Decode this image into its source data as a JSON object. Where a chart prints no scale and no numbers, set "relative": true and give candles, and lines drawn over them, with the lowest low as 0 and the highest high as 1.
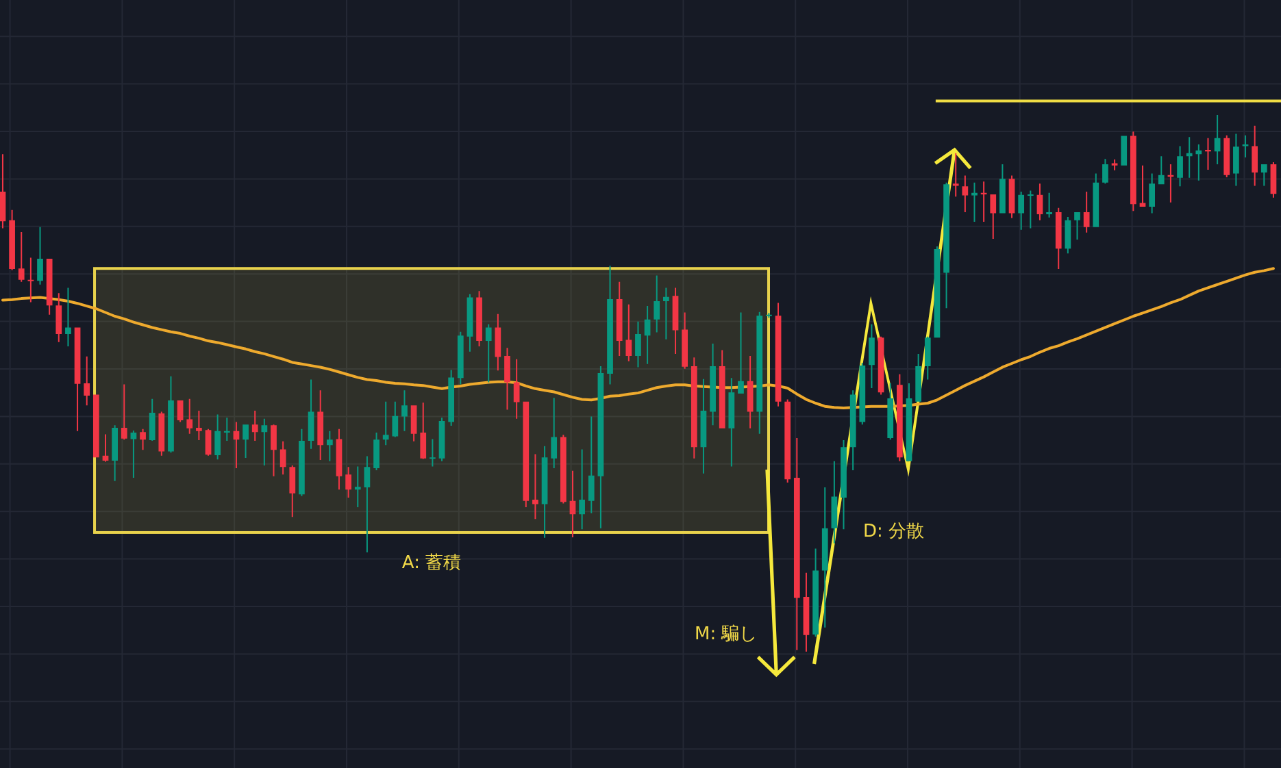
{
  "chart_data": {
    "type": "candlestick",
    "relative": true,
    "grid": true,
    "categories": [
      null,
      null,
      null,
      null,
      null,
      null,
      null,
      null,
      null,
      null,
      null,
      null,
      null,
      null,
      null,
      null,
      null,
      null,
      null,
      null,
      null,
      null,
      null,
      null,
      null,
      null,
      null,
      null,
      null,
      null,
      null,
      null,
      null,
      null,
      null,
      null,
      null,
      null,
      null,
      null,
      null,
      null,
      null,
      null,
      null,
      null,
      null,
      null,
      null,
      null,
      null,
      null,
      null,
      null,
      null,
      null,
      null,
      null,
      null,
      null,
      null,
      null,
      null,
      null,
      null,
      null,
      null,
      null,
      null,
      null,
      null,
      null,
      null,
      null,
      null,
      null,
      null,
      null,
      null,
      null,
      null,
      null,
      null,
      null,
      null,
      null,
      null,
      null,
      null,
      null,
      null,
      null,
      null,
      null,
      null,
      null,
      null,
      null,
      null,
      null,
      null,
      null,
      null,
      null,
      null,
      null,
      null,
      null,
      null,
      null,
      null,
      null,
      null,
      null,
      null,
      null,
      null,
      null,
      null,
      null,
      null,
      null,
      null,
      null,
      null,
      null,
      null,
      null,
      null,
      null,
      null,
      null,
      null,
      null,
      null,
      null,
      null
    ],
    "ohlc": [
      [
        0.857,
        0.927,
        0.789,
        0.802
      ],
      [
        0.804,
        0.823,
        0.711,
        0.713
      ],
      [
        0.714,
        0.782,
        0.689,
        0.693
      ],
      [
        0.693,
        0.734,
        0.651,
        0.691
      ],
      [
        0.691,
        0.791,
        0.684,
        0.732
      ],
      [
        0.732,
        0.732,
        0.628,
        0.645
      ],
      [
        0.645,
        0.668,
        0.577,
        0.592
      ],
      [
        0.592,
        0.678,
        0.569,
        0.604
      ],
      [
        0.604,
        0.604,
        0.411,
        0.499
      ],
      [
        0.5,
        0.55,
        0.459,
        0.477
      ],
      [
        0.479,
        0.479,
        0.362,
        0.362
      ],
      [
        0.365,
        0.405,
        0.354,
        0.356
      ],
      [
        0.356,
        0.422,
        0.318,
        0.417
      ],
      [
        0.417,
        0.498,
        0.395,
        0.397
      ],
      [
        0.396,
        0.412,
        0.324,
        0.408
      ],
      [
        0.409,
        0.415,
        0.376,
        0.395
      ],
      [
        0.394,
        0.471,
        0.393,
        0.445
      ],
      [
        0.444,
        0.447,
        0.365,
        0.373
      ],
      [
        0.373,
        0.513,
        0.371,
        0.468
      ],
      [
        0.468,
        0.468,
        0.428,
        0.431
      ],
      [
        0.433,
        0.471,
        0.406,
        0.416
      ],
      [
        0.417,
        0.449,
        0.394,
        0.411
      ],
      [
        0.413,
        0.415,
        0.365,
        0.367
      ],
      [
        0.366,
        0.442,
        0.358,
        0.411
      ],
      [
        0.408,
        0.436,
        0.393,
        0.411
      ],
      [
        0.411,
        0.428,
        0.342,
        0.395
      ],
      [
        0.395,
        0.423,
        0.361,
        0.423
      ],
      [
        0.423,
        0.449,
        0.393,
        0.409
      ],
      [
        0.409,
        0.434,
        0.347,
        0.422
      ],
      [
        0.422,
        0.423,
        0.327,
        0.376
      ],
      [
        0.377,
        0.392,
        0.33,
        0.344
      ],
      [
        0.344,
        0.347,
        0.251,
        0.295
      ],
      [
        0.293,
        0.415,
        0.29,
        0.393
      ],
      [
        0.393,
        0.507,
        0.378,
        0.447
      ],
      [
        0.447,
        0.487,
        0.357,
        0.385
      ],
      [
        0.385,
        0.411,
        0.355,
        0.395
      ],
      [
        0.396,
        0.415,
        0.302,
        0.327
      ],
      [
        0.33,
        0.344,
        0.287,
        0.302
      ],
      [
        0.302,
        0.345,
        0.269,
        0.307
      ],
      [
        0.306,
        0.364,
        0.185,
        0.344
      ],
      [
        0.342,
        0.408,
        0.338,
        0.395
      ],
      [
        0.395,
        0.466,
        0.385,
        0.404
      ],
      [
        0.401,
        0.466,
        0.4,
        0.439
      ],
      [
        0.438,
        0.487,
        0.411,
        0.459
      ],
      [
        0.459,
        0.459,
        0.392,
        0.406
      ],
      [
        0.408,
        0.464,
        0.359,
        0.36
      ],
      [
        0.36,
        0.396,
        0.345,
        0.362
      ],
      [
        0.36,
        0.436,
        0.355,
        0.43
      ],
      [
        0.428,
        0.525,
        0.421,
        0.511
      ],
      [
        0.51,
        0.596,
        0.498,
        0.589
      ],
      [
        0.587,
        0.666,
        0.559,
        0.66
      ],
      [
        0.66,
        0.672,
        0.569,
        0.579
      ],
      [
        0.579,
        0.61,
        0.502,
        0.604
      ],
      [
        0.604,
        0.629,
        0.524,
        0.549
      ],
      [
        0.551,
        0.566,
        0.451,
        0.502
      ],
      [
        0.502,
        0.545,
        0.434,
        0.465
      ],
      [
        0.466,
        0.466,
        0.269,
        0.281
      ],
      [
        0.283,
        0.368,
        0.247,
        0.275
      ],
      [
        0.275,
        0.383,
        0.212,
        0.362
      ],
      [
        0.36,
        0.473,
        0.342,
        0.4
      ],
      [
        0.4,
        0.404,
        0.276,
        0.279
      ],
      [
        0.281,
        0.337,
        0.213,
        0.256
      ],
      [
        0.256,
        0.377,
        0.228,
        0.283
      ],
      [
        0.281,
        0.438,
        0.258,
        0.328
      ],
      [
        0.327,
        0.532,
        0.23,
        0.519
      ],
      [
        0.518,
        0.719,
        0.498,
        0.657
      ],
      [
        0.657,
        0.689,
        0.551,
        0.579
      ],
      [
        0.581,
        0.647,
        0.541,
        0.551
      ],
      [
        0.551,
        0.615,
        0.53,
        0.592
      ],
      [
        0.589,
        0.644,
        0.536,
        0.619
      ],
      [
        0.619,
        0.701,
        0.595,
        0.653
      ],
      [
        0.653,
        0.678,
        0.582,
        0.661
      ],
      [
        0.663,
        0.678,
        0.555,
        0.599
      ],
      [
        0.6,
        0.632,
        0.527,
        0.531
      ],
      [
        0.532,
        0.548,
        0.36,
        0.381
      ],
      [
        0.381,
        0.508,
        0.332,
        0.449
      ],
      [
        0.447,
        0.574,
        0.422,
        0.532
      ],
      [
        0.532,
        0.562,
        0.416,
        0.416
      ],
      [
        0.416,
        0.51,
        0.345,
        0.483
      ],
      [
        0.481,
        0.632,
        0.481,
        0.504
      ],
      [
        0.504,
        0.551,
        0.416,
        0.447
      ],
      [
        0.447,
        0.633,
        0.406,
        0.626
      ],
      [
        0.626,
        0.631,
        0.622,
        0.628
      ],
      [
        0.626,
        0.65,
        0.457,
        0.466
      ],
      [
        0.466,
        0.47,
        0.315,
        0.321
      ],
      [
        0.324,
        0.398,
        0.003,
        0.1
      ],
      [
        0.102,
        0.147,
        0,
        0.031
      ],
      [
        0.032,
        0.192,
        0.028,
        0.151
      ],
      [
        0.151,
        0.306,
        0.045,
        0.23
      ],
      [
        0.23,
        0.355,
        0.202,
        0.289
      ],
      [
        0.287,
        0.394,
        0.228,
        0.381
      ],
      [
        0.381,
        0.487,
        0.338,
        0.479
      ],
      [
        0.428,
        0.538,
        0.423,
        0.533
      ],
      [
        0.534,
        0.61,
        0.491,
        0.585
      ],
      [
        0.585,
        0.587,
        0.479,
        0.483
      ],
      [
        0.398,
        0.5,
        0.395,
        0.472
      ],
      [
        0.497,
        0.517,
        0.355,
        0.362
      ],
      [
        0.355,
        0.5,
        0.355,
        0.472
      ],
      [
        0.466,
        0.555,
        0.466,
        0.532
      ],
      [
        0.532,
        0.587,
        0.507,
        0.585
      ],
      [
        0.585,
        0.755,
        0.585,
        0.75
      ],
      [
        0.706,
        0.874,
        0.64,
        0.871
      ],
      [
        0.872,
        0.929,
        0.848,
        0.868
      ],
      [
        0.867,
        0.887,
        0.819,
        0.85
      ],
      [
        0.85,
        0.874,
        0.801,
        0.855
      ],
      [
        0.855,
        0.876,
        0.801,
        0.852
      ],
      [
        0.852,
        0.852,
        0.769,
        0.817
      ],
      [
        0.817,
        0.908,
        0.817,
        0.881
      ],
      [
        0.881,
        0.887,
        0.808,
        0.817
      ],
      [
        0.817,
        0.857,
        0.786,
        0.851
      ],
      [
        0.85,
        0.859,
        0.789,
        0.852
      ],
      [
        0.851,
        0.872,
        0.804,
        0.815
      ],
      [
        0.815,
        0.855,
        0.809,
        0.819
      ],
      [
        0.819,
        0.827,
        0.713,
        0.751
      ],
      [
        0.751,
        0.81,
        0.742,
        0.804
      ],
      [
        0.804,
        0.819,
        0.768,
        0.819
      ],
      [
        0.819,
        0.857,
        0.781,
        0.791
      ],
      [
        0.791,
        0.891,
        0.791,
        0.874
      ],
      [
        0.874,
        0.918,
        0.872,
        0.908
      ],
      [
        0.91,
        0.917,
        0.897,
        0.906
      ],
      [
        0.906,
        0.961,
        0.906,
        0.961
      ],
      [
        0.961,
        0.969,
        0.821,
        0.834
      ],
      [
        0.836,
        0.906,
        0.829,
        0.829
      ],
      [
        0.829,
        0.891,
        0.817,
        0.872
      ],
      [
        0.871,
        0.923,
        0.871,
        0.888
      ],
      [
        0.888,
        0.908,
        0.837,
        0.885
      ],
      [
        0.883,
        0.942,
        0.867,
        0.923
      ],
      [
        0.923,
        0.959,
        0.883,
        0.929
      ],
      [
        0.927,
        0.945,
        0.878,
        0.934
      ],
      [
        0.935,
        0.957,
        0.898,
        0.932
      ],
      [
        0.932,
        1,
        0.908,
        0.957
      ],
      [
        0.957,
        0.962,
        0.884,
        0.888
      ],
      [
        0.891,
        0.965,
        0.868,
        0.941
      ],
      [
        0.942,
        0.962,
        0.921,
        0.945
      ],
      [
        0.942,
        0.98,
        0.868,
        0.893
      ],
      [
        0.893,
        0.908,
        0.868,
        0.908
      ],
      [
        0.908,
        0.912,
        0.846,
        0.853
      ]
    ],
    "colors": [
      "#f23645",
      "#f23645",
      "#f23645",
      "#f23645",
      "#089981",
      "#f23645",
      "#f23645",
      "#089981",
      "#f23645",
      "#f23645",
      "#f23645",
      "#f23645",
      "#089981",
      "#f23645",
      "#089981",
      "#f23645",
      "#089981",
      "#f23645",
      "#089981",
      "#f23645",
      "#f23645",
      "#f23645",
      "#f23645",
      "#089981",
      "#089981",
      "#f23645",
      "#089981",
      "#f23645",
      "#089981",
      "#f23645",
      "#f23645",
      "#f23645",
      "#089981",
      "#089981",
      "#f23645",
      "#089981",
      "#f23645",
      "#f23645",
      "#089981",
      "#089981",
      "#089981",
      "#089981",
      "#089981",
      "#089981",
      "#f23645",
      "#f23645",
      "#089981",
      "#089981",
      "#089981",
      "#089981",
      "#089981",
      "#f23645",
      "#089981",
      "#f23645",
      "#f23645",
      "#f23645",
      "#f23645",
      "#f23645",
      "#089981",
      "#089981",
      "#f23645",
      "#f23645",
      "#089981",
      "#089981",
      "#089981",
      "#089981",
      "#f23645",
      "#f23645",
      "#089981",
      "#089981",
      "#089981",
      "#089981",
      "#f23645",
      "#f23645",
      "#f23645",
      "#089981",
      "#089981",
      "#f23645",
      "#089981",
      "#089981",
      "#f23645",
      "#089981",
      "#089981",
      "#f23645",
      "#f23645",
      "#f23645",
      "#f23645",
      "#089981",
      "#089981",
      "#089981",
      "#089981",
      "#089981",
      "#089981",
      "#089981",
      "#f23645",
      "#089981",
      "#f23645",
      "#089981",
      "#089981",
      "#089981",
      "#089981",
      "#089981",
      "#f23645",
      "#f23645",
      "#089981",
      "#f23645",
      "#f23645",
      "#089981",
      "#f23645",
      "#089981",
      "#089981",
      "#f23645",
      "#089981",
      "#f23645",
      "#089981",
      "#089981",
      "#f23645",
      "#089981",
      "#089981",
      "#f23645",
      "#089981",
      "#f23645",
      "#f23645",
      "#089981",
      "#089981",
      "#f23645",
      "#089981",
      "#089981",
      "#089981",
      "#f23645",
      "#089981",
      "#f23645",
      "#089981",
      "#089981",
      "#f23645",
      "#089981",
      "#f23645"
    ],
    "series": [
      {
        "type": "line",
        "color": "#eeaa2e",
        "values": [
          0.655,
          0.656,
          0.658,
          0.659,
          0.66,
          0.658,
          0.656,
          0.653,
          0.649,
          0.644,
          0.639,
          0.632,
          0.625,
          0.62,
          0.614,
          0.609,
          0.604,
          0.6,
          0.596,
          0.593,
          0.588,
          0.584,
          0.579,
          0.576,
          0.572,
          0.568,
          0.564,
          0.559,
          0.555,
          0.55,
          0.545,
          0.539,
          0.536,
          0.533,
          0.53,
          0.526,
          0.521,
          0.516,
          0.511,
          0.507,
          0.505,
          0.502,
          0.5,
          0.499,
          0.497,
          0.496,
          0.493,
          0.49,
          0.493,
          0.495,
          0.498,
          0.5,
          0.502,
          0.503,
          0.503,
          0.501,
          0.495,
          0.49,
          0.487,
          0.484,
          0.479,
          0.474,
          0.47,
          0.469,
          0.472,
          0.476,
          0.477,
          0.48,
          0.482,
          0.487,
          0.492,
          0.495,
          0.497,
          0.497,
          0.495,
          0.494,
          0.493,
          0.492,
          0.492,
          0.493,
          0.494,
          0.495,
          0.497,
          0.495,
          0.491,
          0.48,
          0.47,
          0.463,
          0.457,
          0.455,
          0.454,
          0.455,
          0.456,
          0.457,
          0.457,
          0.457,
          0.458,
          0.459,
          0.461,
          0.463,
          0.469,
          0.478,
          0.487,
          0.496,
          0.504,
          0.512,
          0.521,
          0.53,
          0.537,
          0.544,
          0.55,
          0.558,
          0.565,
          0.57,
          0.577,
          0.583,
          0.59,
          0.597,
          0.604,
          0.611,
          0.618,
          0.625,
          0.631,
          0.637,
          0.643,
          0.65,
          0.656,
          0.664,
          0.672,
          0.678,
          0.684,
          0.69,
          0.696,
          0.702,
          0.707,
          0.71,
          0.714
        ]
      }
    ],
    "bands": [
      {
        "axis": "y",
        "from": 0.222,
        "to": 0.714,
        "label": "A: 蓄積",
        "color": "#e8d24c"
      }
    ],
    "ref_lines": [
      {
        "axis": "y",
        "value": 1.026,
        "color": "#f0dd45"
      }
    ],
    "annotations": [
      "M: 騙し",
      "D: 分散"
    ]
  }
}
